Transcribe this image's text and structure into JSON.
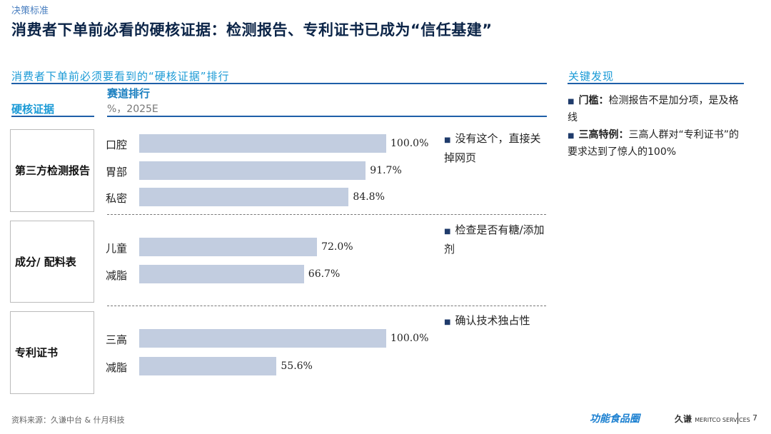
{
  "header": {
    "kicker": "决策标准",
    "title": "消费者下单前必看的硬核证据：检测报告、专利证书已成为“信任基建”"
  },
  "chart_data": {
    "type": "bar",
    "title": "消费者下单前必须要看到的“硬核证据”排行",
    "row_header": "硬核证据",
    "col_header": "赛道排行",
    "unit": "%，2025E",
    "xlim": [
      0,
      100
    ],
    "groups": [
      {
        "name": "第三方检测报告",
        "note": "没有这个，直接关掉网页",
        "categories": [
          "口腔",
          "胃部",
          "私密"
        ],
        "values": [
          100.0,
          91.7,
          84.8
        ],
        "labels": [
          "100.0%",
          "91.7%",
          "84.8%"
        ]
      },
      {
        "name": "成分/ 配料表",
        "note": "检查是否有糖/添加剂",
        "categories": [
          "儿童",
          "减脂"
        ],
        "values": [
          72.0,
          66.7
        ],
        "labels": [
          "72.0%",
          "66.7%"
        ]
      },
      {
        "name": "专利证书",
        "note": "确认技术独占性",
        "categories": [
          "三高",
          "减脂"
        ],
        "values": [
          100.0,
          55.6
        ],
        "labels": [
          "100.0%",
          "55.6%"
        ]
      }
    ],
    "bar_color": "#c2cde0"
  },
  "findings": {
    "title": "关键发现",
    "items": [
      {
        "bold": "门槛：",
        "text": "检测报告不是加分项，是及格线"
      },
      {
        "bold": "三高特例：",
        "text": "三高人群对“专利证书”的要求达到了惊人的100%"
      }
    ]
  },
  "footer": {
    "source": "资料来源：久谦中台 & 什月科技",
    "logo1": "功能食品圈",
    "logo2": "久谦 MERITCO SERVICES",
    "page": "7"
  }
}
